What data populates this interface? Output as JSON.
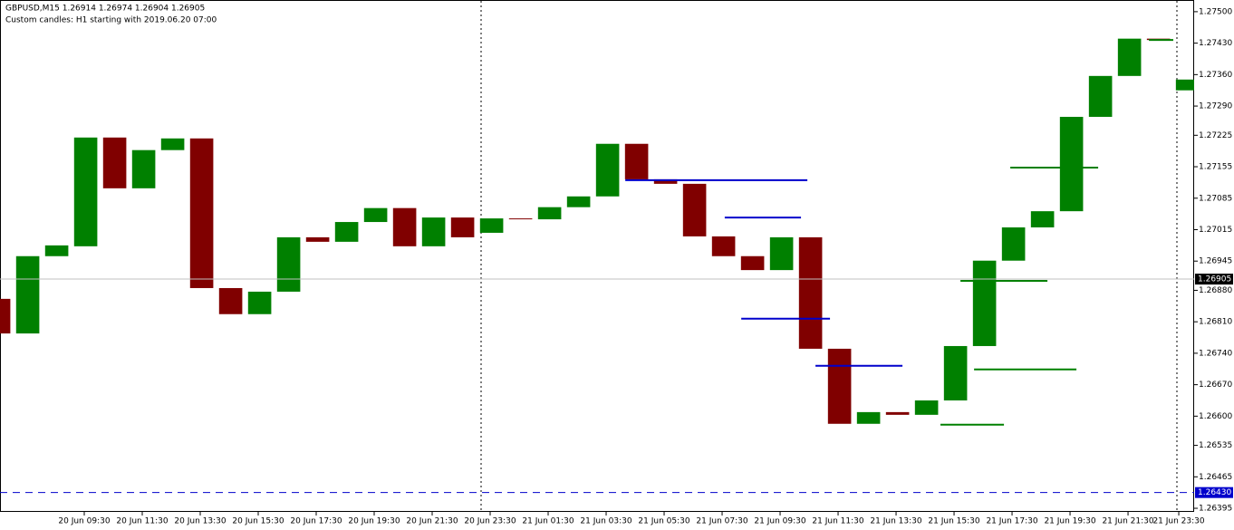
{
  "chart_data": {
    "type": "candlestick",
    "title": "GBPUSD,M15  1.26914 1.26974 1.26904 1.26905",
    "subtitle": "Custom candles: H1 starting with 2019.06.20 07:00",
    "up_color": "#008000",
    "down_color": "#800000",
    "categories": [
      null,
      null,
      null,
      null,
      null,
      null,
      null,
      null,
      null,
      null,
      null,
      null,
      null,
      null,
      null,
      null,
      null,
      null,
      null,
      null,
      null,
      null,
      null,
      null,
      null,
      null,
      null,
      null,
      null,
      null,
      null,
      null,
      null,
      null,
      null,
      null,
      null,
      null,
      null,
      null,
      null,
      null
    ],
    "open": [
      1.26861,
      1.26784,
      1.26956,
      1.26978,
      1.2722,
      1.27107,
      1.27192,
      1.27218,
      1.26885,
      1.26827,
      1.26877,
      1.26998,
      1.26988,
      1.27032,
      1.27063,
      1.26978,
      1.27042,
      1.27008,
      1.2704,
      1.27038,
      1.27065,
      1.27089,
      1.27206,
      1.27127,
      1.27117,
      1.27,
      1.26956,
      1.26925,
      1.26998,
      1.2675,
      1.26583,
      1.26609,
      1.26603,
      1.26635,
      1.26756,
      1.26946,
      1.2702,
      1.27056,
      1.27266,
      1.27357,
      1.2744,
      1.27325
    ],
    "close": [
      1.26784,
      1.26956,
      1.2698,
      1.2722,
      1.27107,
      1.27192,
      1.27218,
      1.26885,
      1.26827,
      1.26877,
      1.26998,
      1.26988,
      1.27032,
      1.27063,
      1.26978,
      1.27042,
      1.26998,
      1.2704,
      1.27038,
      1.27065,
      1.27089,
      1.27206,
      1.27127,
      1.27117,
      1.27,
      1.26956,
      1.26925,
      1.26998,
      1.2675,
      1.26583,
      1.26609,
      1.26603,
      1.26635,
      1.26756,
      1.26946,
      1.2702,
      1.27056,
      1.27266,
      1.27357,
      1.2744,
      1.27437,
      1.27349
    ],
    "levels": [
      {
        "price": 1.27125,
        "from": 22.16,
        "to": 28.44,
        "color": "#0000cc"
      },
      {
        "price": 1.27042,
        "from": 25.59,
        "to": 28.22,
        "color": "#0000cc"
      },
      {
        "price": 1.26817,
        "from": 26.16,
        "to": 29.22,
        "color": "#0000cc"
      },
      {
        "price": 1.26712,
        "from": 28.72,
        "to": 31.72,
        "color": "#0000cc"
      },
      {
        "price": 1.27153,
        "from": 35.44,
        "to": 38.47,
        "color": "#008000"
      },
      {
        "price": 1.26901,
        "from": 33.72,
        "to": 36.72,
        "color": "#008000"
      },
      {
        "price": 1.26704,
        "from": 34.19,
        "to": 37.72,
        "color": "#008000"
      },
      {
        "price": 1.26581,
        "from": 33.03,
        "to": 35.22,
        "color": "#008000"
      },
      {
        "price": 1.27437,
        "from": 40.22,
        "to": 41.06,
        "color": "#008000"
      }
    ],
    "price_line": 1.26905,
    "alert_line": {
      "value": 1.2643,
      "label": "1.26430"
    },
    "xlim": [
      0.594,
      41.78
    ],
    "ylim": [
      1.26387,
      1.27526
    ],
    "xticks": [
      {
        "value": 3.5,
        "label": "20 Jun 09:30"
      },
      {
        "value": 5.5,
        "label": "20 Jun 11:30"
      },
      {
        "value": 7.5,
        "label": "20 Jun 13:30"
      },
      {
        "value": 9.5,
        "label": "20 Jun 15:30"
      },
      {
        "value": 11.5,
        "label": "20 Jun 17:30"
      },
      {
        "value": 13.5,
        "label": "20 Jun 19:30"
      },
      {
        "value": 15.5,
        "label": "20 Jun 21:30"
      },
      {
        "value": 17.5,
        "label": "20 Jun 23:30"
      },
      {
        "value": 19.5,
        "label": "21 Jun 01:30"
      },
      {
        "value": 21.5,
        "label": "21 Jun 03:30"
      },
      {
        "value": 23.5,
        "label": "21 Jun 05:30"
      },
      {
        "value": 25.5,
        "label": "21 Jun 07:30"
      },
      {
        "value": 27.5,
        "label": "21 Jun 09:30"
      },
      {
        "value": 29.5,
        "label": "21 Jun 11:30"
      },
      {
        "value": 31.5,
        "label": "21 Jun 13:30"
      },
      {
        "value": 33.5,
        "label": "21 Jun 15:30"
      },
      {
        "value": 35.5,
        "label": "21 Jun 17:30"
      },
      {
        "value": 37.5,
        "label": "21 Jun 19:30"
      },
      {
        "value": 39.5,
        "label": "21 Jun 21:30"
      },
      {
        "value": 41.25,
        "label": "21 Jun 23:30"
      }
    ],
    "yticks": [
      {
        "value": 1.275,
        "label": "1.27500"
      },
      {
        "value": 1.2743,
        "label": "1.27430"
      },
      {
        "value": 1.2736,
        "label": "1.27360"
      },
      {
        "value": 1.2729,
        "label": "1.27290"
      },
      {
        "value": 1.27225,
        "label": "1.27225"
      },
      {
        "value": 1.27155,
        "label": "1.27155"
      },
      {
        "value": 1.27085,
        "label": "1.27085"
      },
      {
        "value": 1.27015,
        "label": "1.27015"
      },
      {
        "value": 1.26945,
        "label": "1.26945"
      },
      {
        "value": 1.2688,
        "label": "1.26880"
      },
      {
        "value": 1.2681,
        "label": "1.26810"
      },
      {
        "value": 1.2674,
        "label": "1.26740"
      },
      {
        "value": 1.2667,
        "label": "1.26670"
      },
      {
        "value": 1.266,
        "label": "1.26600"
      },
      {
        "value": 1.26535,
        "label": "1.26535"
      },
      {
        "value": 1.26465,
        "label": "1.26465"
      },
      {
        "value": 1.26395,
        "label": "1.26395"
      }
    ],
    "grid": false
  }
}
